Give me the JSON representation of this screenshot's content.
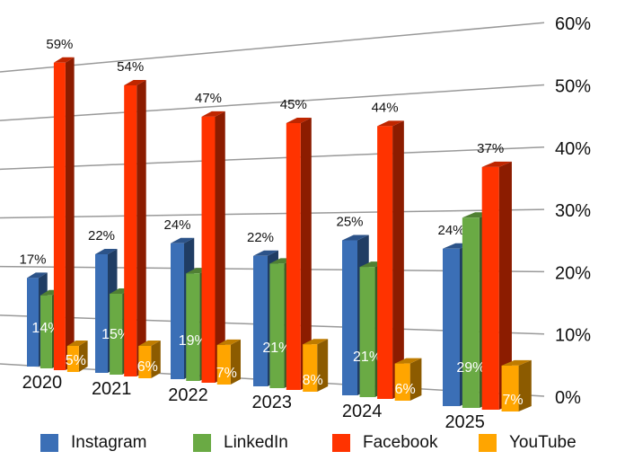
{
  "chart_data": {
    "type": "bar",
    "categories": [
      "2020",
      "2021",
      "2022",
      "2023",
      "2024",
      "2025"
    ],
    "series": [
      {
        "name": "Instagram",
        "color": "#3b6fb6",
        "values": [
          17,
          22,
          24,
          22,
          25,
          24
        ],
        "labels": [
          "17%",
          "22%",
          "24%",
          "22%",
          "25%",
          "24%"
        ]
      },
      {
        "name": "LinkedIn",
        "color": "#6aaa44",
        "values": [
          14,
          15,
          19,
          21,
          21,
          29
        ],
        "labels": [
          "14%",
          "15%",
          "19%",
          "21%",
          "21%",
          "29%"
        ]
      },
      {
        "name": "Facebook",
        "color": "#ff3300",
        "values": [
          59,
          54,
          47,
          45,
          44,
          37
        ],
        "labels": [
          "59%",
          "54%",
          "47%",
          "45%",
          "44%",
          "37%"
        ]
      },
      {
        "name": "YouTube",
        "color": "#ffa500",
        "values": [
          5,
          6,
          7,
          8,
          6,
          7
        ],
        "labels": [
          "5%",
          "6%",
          "7%",
          "8%",
          "6%",
          "7%"
        ]
      }
    ],
    "yticks": [
      "0%",
      "10%",
      "20%",
      "30%",
      "40%",
      "50%",
      "60%"
    ],
    "ylim": [
      0,
      60
    ],
    "title": "",
    "xlabel": "",
    "ylabel": "",
    "grid": true,
    "legend_position": "bottom",
    "style": "3d-perspective"
  }
}
